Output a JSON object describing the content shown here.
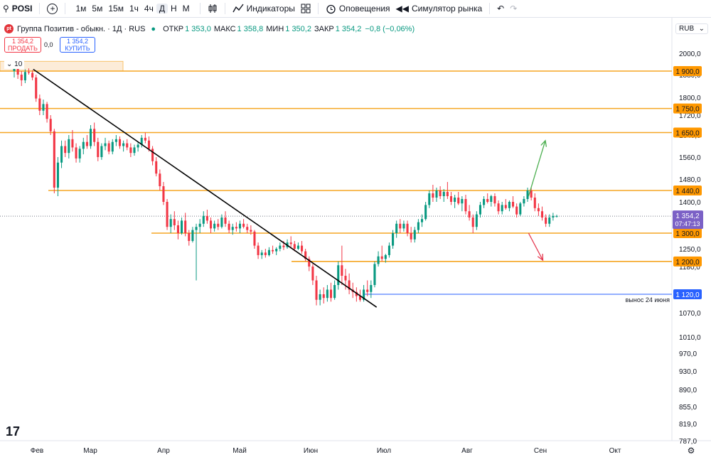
{
  "toolbar": {
    "symbol": "POSI",
    "timeframes": [
      "1м",
      "5м",
      "15м",
      "1ч",
      "4ч",
      "Д",
      "Н",
      "М"
    ],
    "active_timeframe": "Д",
    "indicators_label": "Индикаторы",
    "alerts_label": "Оповещения",
    "replay_label": "Симулятор рынка"
  },
  "legend": {
    "title": "Группа Позитив - обыкн. · 1Д · RUS",
    "open_label": "ОТКР",
    "open": "1 353,0",
    "high_label": "МАКС",
    "high": "1 358,8",
    "low_label": "МИН",
    "low": "1 350,2",
    "close_label": "ЗАКР",
    "close": "1 354,2",
    "change": "−0,8 (−0,06%)"
  },
  "trade": {
    "sell_price": "1 354,2",
    "sell_label": "ПРОДАТЬ",
    "spread": "0,0",
    "buy_price": "1 354,2",
    "buy_label": "КУПИТЬ"
  },
  "volume_toggle": "10",
  "currency": "RUB",
  "logo_text": "17",
  "colors": {
    "up": "#089981",
    "down": "#f23645",
    "level": "#f5a623",
    "level_label_bg": "#ff9800",
    "support": "#2962ff"
  },
  "chart_data": {
    "type": "candlestick",
    "y_axis_ticks": [
      "2000,0",
      "1880,0",
      "1800,0",
      "1720,0",
      "1640,0",
      "1560,0",
      "1480,0",
      "1400,0",
      "1250,0",
      "1180,0",
      "1120,0",
      "1070,0",
      "1010,0",
      "970,0",
      "930,0",
      "890,0",
      "855,0",
      "819,0",
      "787,0"
    ],
    "x_axis_labels": [
      "Фев",
      "Мар",
      "Апр",
      "Май",
      "Июн",
      "Июл",
      "Авг",
      "Сен",
      "Окт"
    ],
    "current_price": "1 354,2",
    "countdown": "07:47:13",
    "levels": [
      {
        "value": 1900,
        "label": "1 900,0"
      },
      {
        "value": 1750,
        "label": "1 750,0"
      },
      {
        "value": 1650,
        "label": "1 650,0"
      },
      {
        "value": 1440,
        "label": "1 440,0"
      },
      {
        "value": 1300,
        "label": "1 300,0"
      },
      {
        "value": 1200,
        "label": "1 200,0"
      }
    ],
    "support": {
      "value": 1120,
      "label": "1 120,0",
      "note": "вынос 24 июня"
    },
    "trendline": {
      "from": {
        "date": "2024-01-30",
        "price": 1910
      },
      "to": {
        "date": "2024-06-28",
        "price": 1085
      }
    },
    "arrows": [
      {
        "direction": "up",
        "from_date": "2024-08-27",
        "from_price": 1420,
        "to_date": "2024-09-03",
        "to_price": 1620
      },
      {
        "direction": "down",
        "from_date": "2024-08-27",
        "from_price": 1300,
        "to_date": "2024-09-02",
        "to_price": 1205
      }
    ],
    "candles": [
      {
        "o": 1900,
        "h": 1960,
        "l": 1870,
        "c": 1930
      },
      {
        "o": 1930,
        "h": 1945,
        "l": 1865,
        "c": 1880
      },
      {
        "o": 1880,
        "h": 1900,
        "l": 1840,
        "c": 1860
      },
      {
        "o": 1860,
        "h": 1910,
        "l": 1850,
        "c": 1895
      },
      {
        "o": 1895,
        "h": 1915,
        "l": 1880,
        "c": 1890
      },
      {
        "o": 1890,
        "h": 1905,
        "l": 1860,
        "c": 1870
      },
      {
        "o": 1870,
        "h": 1880,
        "l": 1780,
        "c": 1795
      },
      {
        "o": 1795,
        "h": 1810,
        "l": 1720,
        "c": 1740
      },
      {
        "o": 1740,
        "h": 1790,
        "l": 1720,
        "c": 1770
      },
      {
        "o": 1770,
        "h": 1780,
        "l": 1690,
        "c": 1705
      },
      {
        "o": 1705,
        "h": 1720,
        "l": 1640,
        "c": 1655
      },
      {
        "o": 1655,
        "h": 1665,
        "l": 1430,
        "c": 1450
      },
      {
        "o": 1450,
        "h": 1560,
        "l": 1420,
        "c": 1540
      },
      {
        "o": 1540,
        "h": 1620,
        "l": 1520,
        "c": 1600
      },
      {
        "o": 1600,
        "h": 1620,
        "l": 1560,
        "c": 1575
      },
      {
        "o": 1575,
        "h": 1640,
        "l": 1555,
        "c": 1625
      },
      {
        "o": 1625,
        "h": 1660,
        "l": 1580,
        "c": 1595
      },
      {
        "o": 1595,
        "h": 1610,
        "l": 1540,
        "c": 1555
      },
      {
        "o": 1555,
        "h": 1600,
        "l": 1540,
        "c": 1590
      },
      {
        "o": 1590,
        "h": 1630,
        "l": 1570,
        "c": 1615
      },
      {
        "o": 1615,
        "h": 1640,
        "l": 1590,
        "c": 1600
      },
      {
        "o": 1600,
        "h": 1680,
        "l": 1590,
        "c": 1665
      },
      {
        "o": 1665,
        "h": 1690,
        "l": 1600,
        "c": 1615
      },
      {
        "o": 1615,
        "h": 1630,
        "l": 1545,
        "c": 1560
      },
      {
        "o": 1560,
        "h": 1610,
        "l": 1550,
        "c": 1600
      },
      {
        "o": 1600,
        "h": 1630,
        "l": 1585,
        "c": 1610
      },
      {
        "o": 1610,
        "h": 1620,
        "l": 1570,
        "c": 1580
      },
      {
        "o": 1580,
        "h": 1625,
        "l": 1570,
        "c": 1615
      },
      {
        "o": 1615,
        "h": 1640,
        "l": 1600,
        "c": 1625
      },
      {
        "o": 1625,
        "h": 1635,
        "l": 1590,
        "c": 1600
      },
      {
        "o": 1600,
        "h": 1620,
        "l": 1580,
        "c": 1610
      },
      {
        "o": 1610,
        "h": 1625,
        "l": 1585,
        "c": 1595
      },
      {
        "o": 1595,
        "h": 1610,
        "l": 1560,
        "c": 1575
      },
      {
        "o": 1575,
        "h": 1605,
        "l": 1565,
        "c": 1595
      },
      {
        "o": 1595,
        "h": 1615,
        "l": 1580,
        "c": 1605
      },
      {
        "o": 1605,
        "h": 1640,
        "l": 1595,
        "c": 1630
      },
      {
        "o": 1630,
        "h": 1650,
        "l": 1610,
        "c": 1620
      },
      {
        "o": 1620,
        "h": 1635,
        "l": 1580,
        "c": 1590
      },
      {
        "o": 1590,
        "h": 1600,
        "l": 1530,
        "c": 1545
      },
      {
        "o": 1545,
        "h": 1560,
        "l": 1490,
        "c": 1500
      },
      {
        "o": 1500,
        "h": 1515,
        "l": 1440,
        "c": 1455
      },
      {
        "o": 1455,
        "h": 1470,
        "l": 1390,
        "c": 1400
      },
      {
        "o": 1400,
        "h": 1410,
        "l": 1310,
        "c": 1320
      },
      {
        "o": 1320,
        "h": 1360,
        "l": 1300,
        "c": 1345
      },
      {
        "o": 1345,
        "h": 1370,
        "l": 1310,
        "c": 1325
      },
      {
        "o": 1325,
        "h": 1340,
        "l": 1280,
        "c": 1300
      },
      {
        "o": 1300,
        "h": 1350,
        "l": 1295,
        "c": 1340
      },
      {
        "o": 1340,
        "h": 1365,
        "l": 1290,
        "c": 1300
      },
      {
        "o": 1300,
        "h": 1310,
        "l": 1260,
        "c": 1275
      },
      {
        "o": 1275,
        "h": 1320,
        "l": 1270,
        "c": 1310
      },
      {
        "o": 1310,
        "h": 1330,
        "l": 1150,
        "c": 1320
      },
      {
        "o": 1320,
        "h": 1345,
        "l": 1300,
        "c": 1330
      },
      {
        "o": 1330,
        "h": 1370,
        "l": 1320,
        "c": 1355
      },
      {
        "o": 1355,
        "h": 1375,
        "l": 1330,
        "c": 1340
      },
      {
        "o": 1340,
        "h": 1350,
        "l": 1300,
        "c": 1315
      },
      {
        "o": 1315,
        "h": 1340,
        "l": 1305,
        "c": 1330
      },
      {
        "o": 1330,
        "h": 1345,
        "l": 1310,
        "c": 1320
      },
      {
        "o": 1320,
        "h": 1360,
        "l": 1315,
        "c": 1350
      },
      {
        "o": 1350,
        "h": 1370,
        "l": 1320,
        "c": 1330
      },
      {
        "o": 1330,
        "h": 1340,
        "l": 1300,
        "c": 1310
      },
      {
        "o": 1310,
        "h": 1330,
        "l": 1295,
        "c": 1320
      },
      {
        "o": 1320,
        "h": 1335,
        "l": 1305,
        "c": 1315
      },
      {
        "o": 1315,
        "h": 1340,
        "l": 1300,
        "c": 1330
      },
      {
        "o": 1330,
        "h": 1345,
        "l": 1315,
        "c": 1320
      },
      {
        "o": 1320,
        "h": 1330,
        "l": 1300,
        "c": 1310
      },
      {
        "o": 1310,
        "h": 1325,
        "l": 1295,
        "c": 1305
      },
      {
        "o": 1305,
        "h": 1310,
        "l": 1250,
        "c": 1260
      },
      {
        "o": 1260,
        "h": 1270,
        "l": 1210,
        "c": 1225
      },
      {
        "o": 1225,
        "h": 1245,
        "l": 1210,
        "c": 1235
      },
      {
        "o": 1235,
        "h": 1250,
        "l": 1215,
        "c": 1225
      },
      {
        "o": 1225,
        "h": 1255,
        "l": 1220,
        "c": 1245
      },
      {
        "o": 1245,
        "h": 1260,
        "l": 1230,
        "c": 1240
      },
      {
        "o": 1240,
        "h": 1255,
        "l": 1225,
        "c": 1250
      },
      {
        "o": 1250,
        "h": 1270,
        "l": 1240,
        "c": 1260
      },
      {
        "o": 1260,
        "h": 1275,
        "l": 1245,
        "c": 1255
      },
      {
        "o": 1255,
        "h": 1280,
        "l": 1250,
        "c": 1270
      },
      {
        "o": 1270,
        "h": 1290,
        "l": 1255,
        "c": 1265
      },
      {
        "o": 1265,
        "h": 1275,
        "l": 1240,
        "c": 1250
      },
      {
        "o": 1250,
        "h": 1270,
        "l": 1245,
        "c": 1260
      },
      {
        "o": 1260,
        "h": 1275,
        "l": 1230,
        "c": 1240
      },
      {
        "o": 1240,
        "h": 1250,
        "l": 1200,
        "c": 1210
      },
      {
        "o": 1210,
        "h": 1220,
        "l": 1170,
        "c": 1180
      },
      {
        "o": 1180,
        "h": 1190,
        "l": 1140,
        "c": 1150
      },
      {
        "o": 1150,
        "h": 1160,
        "l": 1090,
        "c": 1105
      },
      {
        "o": 1105,
        "h": 1130,
        "l": 1090,
        "c": 1120
      },
      {
        "o": 1120,
        "h": 1135,
        "l": 1095,
        "c": 1110
      },
      {
        "o": 1110,
        "h": 1140,
        "l": 1100,
        "c": 1130
      },
      {
        "o": 1130,
        "h": 1145,
        "l": 1100,
        "c": 1110
      },
      {
        "o": 1110,
        "h": 1150,
        "l": 1105,
        "c": 1140
      },
      {
        "o": 1140,
        "h": 1200,
        "l": 1130,
        "c": 1185
      },
      {
        "o": 1185,
        "h": 1260,
        "l": 1140,
        "c": 1160
      },
      {
        "o": 1160,
        "h": 1175,
        "l": 1130,
        "c": 1150
      },
      {
        "o": 1150,
        "h": 1165,
        "l": 1120,
        "c": 1130
      },
      {
        "o": 1130,
        "h": 1145,
        "l": 1110,
        "c": 1125
      },
      {
        "o": 1125,
        "h": 1135,
        "l": 1100,
        "c": 1115
      },
      {
        "o": 1115,
        "h": 1130,
        "l": 1100,
        "c": 1105
      },
      {
        "o": 1105,
        "h": 1140,
        "l": 1100,
        "c": 1130
      },
      {
        "o": 1130,
        "h": 1150,
        "l": 1115,
        "c": 1125
      },
      {
        "o": 1125,
        "h": 1150,
        "l": 1110,
        "c": 1140
      },
      {
        "o": 1140,
        "h": 1200,
        "l": 1135,
        "c": 1190
      },
      {
        "o": 1190,
        "h": 1240,
        "l": 1180,
        "c": 1220
      },
      {
        "o": 1220,
        "h": 1260,
        "l": 1200,
        "c": 1210
      },
      {
        "o": 1210,
        "h": 1230,
        "l": 1195,
        "c": 1225
      },
      {
        "o": 1225,
        "h": 1270,
        "l": 1215,
        "c": 1260
      },
      {
        "o": 1260,
        "h": 1310,
        "l": 1250,
        "c": 1300
      },
      {
        "o": 1300,
        "h": 1340,
        "l": 1285,
        "c": 1330
      },
      {
        "o": 1330,
        "h": 1345,
        "l": 1300,
        "c": 1315
      },
      {
        "o": 1315,
        "h": 1340,
        "l": 1305,
        "c": 1330
      },
      {
        "o": 1330,
        "h": 1340,
        "l": 1290,
        "c": 1300
      },
      {
        "o": 1300,
        "h": 1320,
        "l": 1270,
        "c": 1280
      },
      {
        "o": 1280,
        "h": 1320,
        "l": 1270,
        "c": 1310
      },
      {
        "o": 1310,
        "h": 1345,
        "l": 1300,
        "c": 1335
      },
      {
        "o": 1335,
        "h": 1360,
        "l": 1320,
        "c": 1345
      },
      {
        "o": 1345,
        "h": 1400,
        "l": 1340,
        "c": 1390
      },
      {
        "o": 1390,
        "h": 1440,
        "l": 1380,
        "c": 1430
      },
      {
        "o": 1430,
        "h": 1460,
        "l": 1400,
        "c": 1415
      },
      {
        "o": 1415,
        "h": 1450,
        "l": 1400,
        "c": 1440
      },
      {
        "o": 1440,
        "h": 1455,
        "l": 1410,
        "c": 1420
      },
      {
        "o": 1420,
        "h": 1445,
        "l": 1400,
        "c": 1435
      },
      {
        "o": 1435,
        "h": 1470,
        "l": 1410,
        "c": 1420
      },
      {
        "o": 1420,
        "h": 1435,
        "l": 1390,
        "c": 1400
      },
      {
        "o": 1400,
        "h": 1425,
        "l": 1380,
        "c": 1415
      },
      {
        "o": 1415,
        "h": 1435,
        "l": 1390,
        "c": 1395
      },
      {
        "o": 1395,
        "h": 1420,
        "l": 1370,
        "c": 1410
      },
      {
        "o": 1410,
        "h": 1425,
        "l": 1360,
        "c": 1370
      },
      {
        "o": 1370,
        "h": 1390,
        "l": 1340,
        "c": 1350
      },
      {
        "o": 1350,
        "h": 1360,
        "l": 1300,
        "c": 1320
      },
      {
        "o": 1320,
        "h": 1370,
        "l": 1310,
        "c": 1360
      },
      {
        "o": 1360,
        "h": 1400,
        "l": 1350,
        "c": 1390
      },
      {
        "o": 1390,
        "h": 1420,
        "l": 1380,
        "c": 1410
      },
      {
        "o": 1410,
        "h": 1430,
        "l": 1395,
        "c": 1400
      },
      {
        "o": 1400,
        "h": 1425,
        "l": 1385,
        "c": 1420
      },
      {
        "o": 1420,
        "h": 1430,
        "l": 1385,
        "c": 1395
      },
      {
        "o": 1395,
        "h": 1405,
        "l": 1360,
        "c": 1370
      },
      {
        "o": 1370,
        "h": 1400,
        "l": 1360,
        "c": 1390
      },
      {
        "o": 1390,
        "h": 1410,
        "l": 1375,
        "c": 1380
      },
      {
        "o": 1380,
        "h": 1405,
        "l": 1370,
        "c": 1400
      },
      {
        "o": 1400,
        "h": 1420,
        "l": 1380,
        "c": 1385
      },
      {
        "o": 1385,
        "h": 1395,
        "l": 1350,
        "c": 1360
      },
      {
        "o": 1360,
        "h": 1400,
        "l": 1355,
        "c": 1395
      },
      {
        "o": 1395,
        "h": 1420,
        "l": 1385,
        "c": 1410
      },
      {
        "o": 1410,
        "h": 1450,
        "l": 1400,
        "c": 1440
      },
      {
        "o": 1440,
        "h": 1450,
        "l": 1405,
        "c": 1415
      },
      {
        "o": 1415,
        "h": 1430,
        "l": 1370,
        "c": 1380
      },
      {
        "o": 1380,
        "h": 1395,
        "l": 1355,
        "c": 1370
      },
      {
        "o": 1370,
        "h": 1385,
        "l": 1340,
        "c": 1350
      },
      {
        "o": 1350,
        "h": 1360,
        "l": 1320,
        "c": 1330
      },
      {
        "o": 1330,
        "h": 1360,
        "l": 1320,
        "c": 1350
      },
      {
        "o": 1350,
        "h": 1365,
        "l": 1340,
        "c": 1355
      },
      {
        "o": 1353,
        "h": 1358.8,
        "l": 1350.2,
        "c": 1354.2
      }
    ]
  }
}
